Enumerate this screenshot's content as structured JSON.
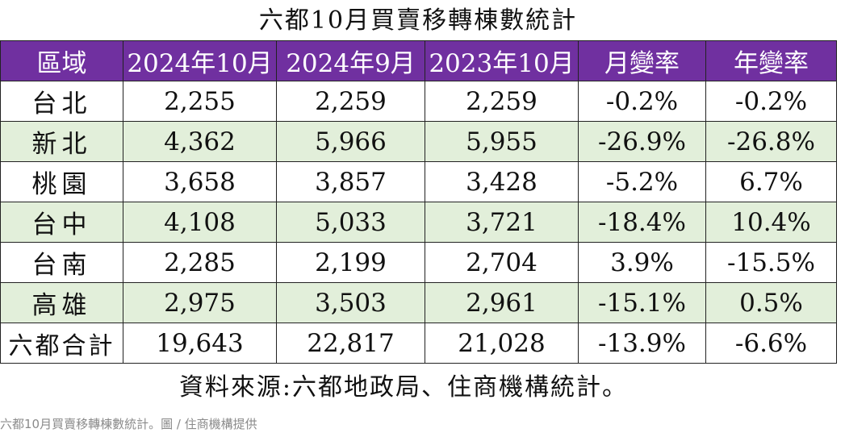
{
  "title": "六都10月買賣移轉棟數統計",
  "headers": [
    "區域",
    "2024年10月",
    "2024年9月",
    "2023年10月",
    "月變率",
    "年變率"
  ],
  "rows": [
    {
      "region": "台北",
      "oct2024": "2,255",
      "sep2024": "2,259",
      "oct2023": "2,259",
      "mom": "-0.2%",
      "yoy": "-0.2%"
    },
    {
      "region": "新北",
      "oct2024": "4,362",
      "sep2024": "5,966",
      "oct2023": "5,955",
      "mom": "-26.9%",
      "yoy": "-26.8%"
    },
    {
      "region": "桃園",
      "oct2024": "3,658",
      "sep2024": "3,857",
      "oct2023": "3,428",
      "mom": "-5.2%",
      "yoy": "6.7%"
    },
    {
      "region": "台中",
      "oct2024": "4,108",
      "sep2024": "5,033",
      "oct2023": "3,721",
      "mom": "-18.4%",
      "yoy": "10.4%"
    },
    {
      "region": "台南",
      "oct2024": "2,285",
      "sep2024": "2,199",
      "oct2023": "2,704",
      "mom": "3.9%",
      "yoy": "-15.5%"
    },
    {
      "region": "高雄",
      "oct2024": "2,975",
      "sep2024": "3,503",
      "oct2023": "2,961",
      "mom": "-15.1%",
      "yoy": "0.5%"
    },
    {
      "region": "六都合計",
      "oct2024": "19,643",
      "sep2024": "22,817",
      "oct2023": "21,028",
      "mom": "-13.9%",
      "yoy": "-6.6%"
    }
  ],
  "source": "資料來源:六都地政局、住商機構統計。",
  "caption": "六都10月買賣移轉棟數統計。圖 / 住商機構提供",
  "colors": {
    "header_bg": "#7030a0",
    "header_text": "#ffffff",
    "shaded_row": "#e2efda",
    "border": "#222222",
    "caption_text": "#8a8a8a"
  }
}
